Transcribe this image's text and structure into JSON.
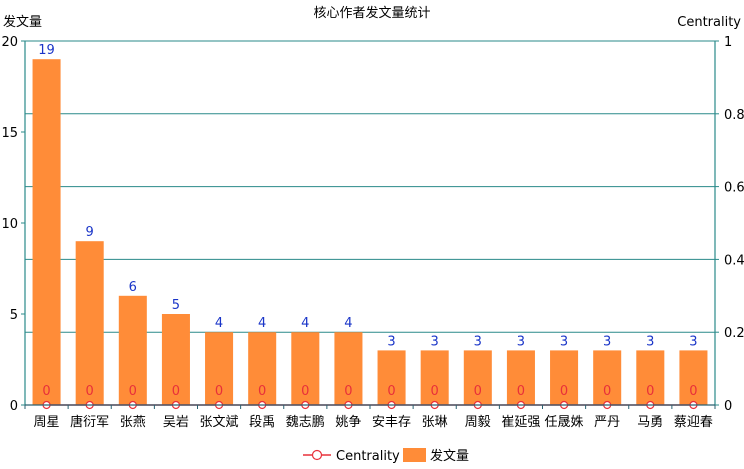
{
  "chart_data": {
    "type": "bar",
    "title": "核心作者发文量统计",
    "categories": [
      "周星",
      "唐衍军",
      "张燕",
      "吴岩",
      "张文斌",
      "段禹",
      "魏志鹏",
      "姚争",
      "安丰存",
      "张琳",
      "周毅",
      "崔延强",
      "任晟姝",
      "严丹",
      "马勇",
      "蔡迎春"
    ],
    "series": [
      {
        "name": "发文量",
        "axis": "left",
        "color": "#FF8C38",
        "label_color": "#1a35c8",
        "values": [
          19,
          9,
          6,
          5,
          4,
          4,
          4,
          4,
          3,
          3,
          3,
          3,
          3,
          3,
          3,
          3
        ]
      },
      {
        "name": "Centrality",
        "type": "line",
        "axis": "right",
        "color": "#e8303a",
        "label_color": "#e8303a",
        "values": [
          0,
          0,
          0,
          0,
          0,
          0,
          0,
          0,
          0,
          0,
          0,
          0,
          0,
          0,
          0,
          0
        ]
      }
    ],
    "y_left": {
      "label": "发文量",
      "ylim": [
        0,
        20
      ],
      "ticks": [
        0,
        5,
        10,
        15,
        20
      ]
    },
    "y_right": {
      "label": "Centrality",
      "ylim": [
        0,
        1
      ],
      "ticks": [
        "0",
        "0.2",
        "0.4",
        "0.6",
        "0.8",
        "1"
      ]
    },
    "grid": true,
    "legend_position": "bottom-center",
    "legend": [
      {
        "label": "Centrality",
        "type": "line-marker",
        "color": "#e8303a"
      },
      {
        "label": "发文量",
        "type": "bar",
        "color": "#FF8C38"
      }
    ],
    "grid_color": "#2a8a8a"
  }
}
